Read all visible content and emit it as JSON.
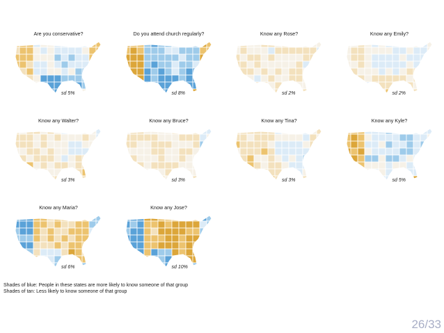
{
  "chart_data": {
    "type": "choropleth",
    "description_units": "panel title and standard deviation of state-level deviations",
    "legend": {
      "blue": "Shades of blue:  People in these states are more likely to know someone of that group",
      "tan": "Shades of tan:  Less likely to know someone of that group"
    },
    "colors": {
      "dark_blue": "#5aa2d8",
      "mid_blue": "#9ecbea",
      "light_blue": "#dcebf7",
      "neutral": "#f6f1e7",
      "light_tan": "#f3e1bd",
      "mid_tan": "#ecc36f",
      "dark_tan": "#dca63a",
      "border": "#ffffff"
    },
    "panels": [
      {
        "title": "Are you conservative?",
        "sd": "sd 5%",
        "sd_value": 5,
        "shades": {
          "west": 0.5,
          "mountain": -0.15,
          "midwest": -0.3,
          "south": -0.7,
          "texas": -0.95,
          "northeast": 0.55,
          "florida": 0.2
        }
      },
      {
        "title": "Do you attend church regularly?",
        "sd": "sd 8%",
        "sd_value": 8,
        "shades": {
          "west": 0.8,
          "mountain": -0.6,
          "midwest": -0.4,
          "south": -0.9,
          "texas": -0.95,
          "northeast": 0.6,
          "florida": 0.9
        }
      },
      {
        "title": "Know any Rose?",
        "sd": "sd 2%",
        "sd_value": 2,
        "shades": {
          "west": 0.1,
          "mountain": 0.05,
          "midwest": 0.1,
          "south": 0.15,
          "texas": 0.1,
          "northeast": 0.0,
          "florida": 0.1
        }
      },
      {
        "title": "Know any Emily?",
        "sd": "sd 2%",
        "sd_value": 2,
        "shades": {
          "west": 0.15,
          "mountain": -0.1,
          "midwest": -0.15,
          "south": 0.2,
          "texas": 0.25,
          "northeast": -0.15,
          "florida": 0.2
        }
      },
      {
        "title": "Know any Walter?",
        "sd": "sd 3%",
        "sd_value": 3,
        "shades": {
          "west": 0.2,
          "mountain": 0.15,
          "midwest": -0.05,
          "south": 0.2,
          "texas": 0.15,
          "northeast": -0.1,
          "florida": 0.2
        }
      },
      {
        "title": "Know any Bruce?",
        "sd": "sd 3%",
        "sd_value": 3,
        "shades": {
          "west": 0.15,
          "mountain": 0.1,
          "midwest": 0.1,
          "south": 0.15,
          "texas": 0.15,
          "northeast": -0.3,
          "florida": 0.2
        }
      },
      {
        "title": "Know any Tina?",
        "sd": "sd 3%",
        "sd_value": 3,
        "shades": {
          "west": 0.3,
          "mountain": 0.2,
          "midwest": -0.15,
          "south": -0.25,
          "texas": 0.3,
          "northeast": 0.1,
          "florida": 0.25
        }
      },
      {
        "title": "Know any Kyle?",
        "sd": "sd 5%",
        "sd_value": 5,
        "shades": {
          "west": 0.7,
          "mountain": -0.2,
          "midwest": -0.35,
          "south": -0.2,
          "texas": -0.1,
          "northeast": -0.25,
          "florida": 0.65
        }
      },
      {
        "title": "Know any Maria?",
        "sd": "sd 6%",
        "sd_value": 6,
        "shades": {
          "west": -0.8,
          "mountain": 0.4,
          "midwest": 0.5,
          "south": 0.55,
          "texas": -0.3,
          "northeast": -0.5,
          "florida": -0.4
        }
      },
      {
        "title": "Know any Jose?",
        "sd": "sd 10%",
        "sd_value": 10,
        "shades": {
          "west": -0.9,
          "mountain": 0.6,
          "midwest": 0.85,
          "south": 0.95,
          "texas": -0.7,
          "northeast": -0.6,
          "florida": -0.5
        }
      }
    ]
  },
  "slide": {
    "number": "26/33"
  }
}
